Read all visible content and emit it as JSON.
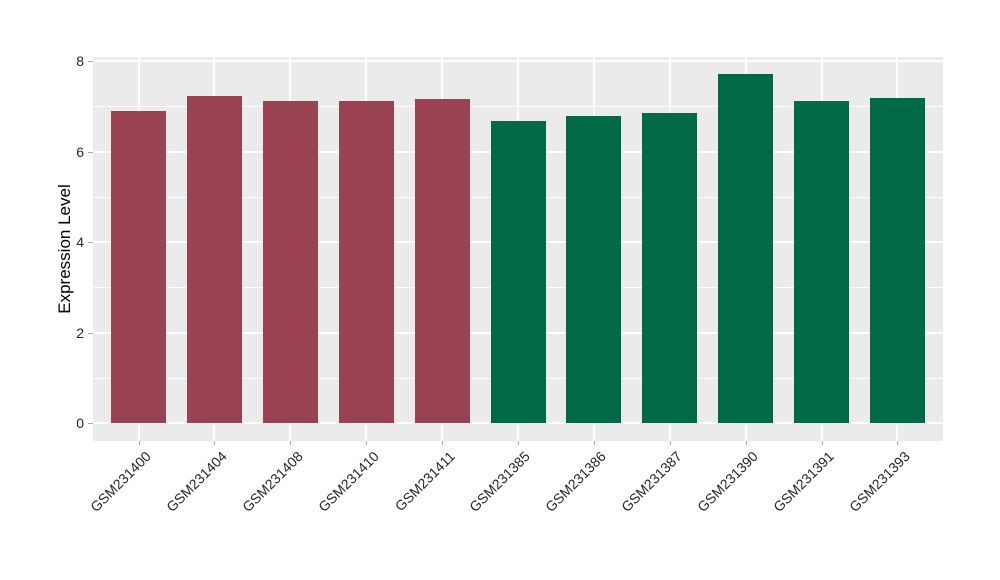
{
  "chart_data": {
    "type": "bar",
    "title": "",
    "xlabel": "",
    "ylabel": "Expression Level",
    "categories": [
      "GSM231400",
      "GSM231404",
      "GSM231408",
      "GSM231410",
      "GSM231411",
      "GSM231385",
      "GSM231386",
      "GSM231387",
      "GSM231390",
      "GSM231391",
      "GSM231393"
    ],
    "values": [
      6.9,
      7.22,
      7.12,
      7.11,
      7.17,
      6.67,
      6.78,
      6.84,
      7.71,
      7.12,
      7.18
    ],
    "bar_colors": [
      "#9B4252",
      "#9B4252",
      "#9B4252",
      "#9B4252",
      "#9B4252",
      "#006A48",
      "#006A48",
      "#006A48",
      "#006A48",
      "#006A48",
      "#006A48"
    ],
    "ylim": [
      0,
      8
    ],
    "yticks": [
      0,
      2,
      4,
      6,
      8
    ],
    "minor_yticks": [
      1,
      3,
      5,
      7
    ],
    "x_tick_rotation_deg": 45,
    "grid": "on",
    "legend": "none",
    "panel_background": "#EBEBEB",
    "grid_color": "#FFFFFF",
    "maroon_group_color": "#9B4252",
    "green_group_color": "#006A48"
  }
}
